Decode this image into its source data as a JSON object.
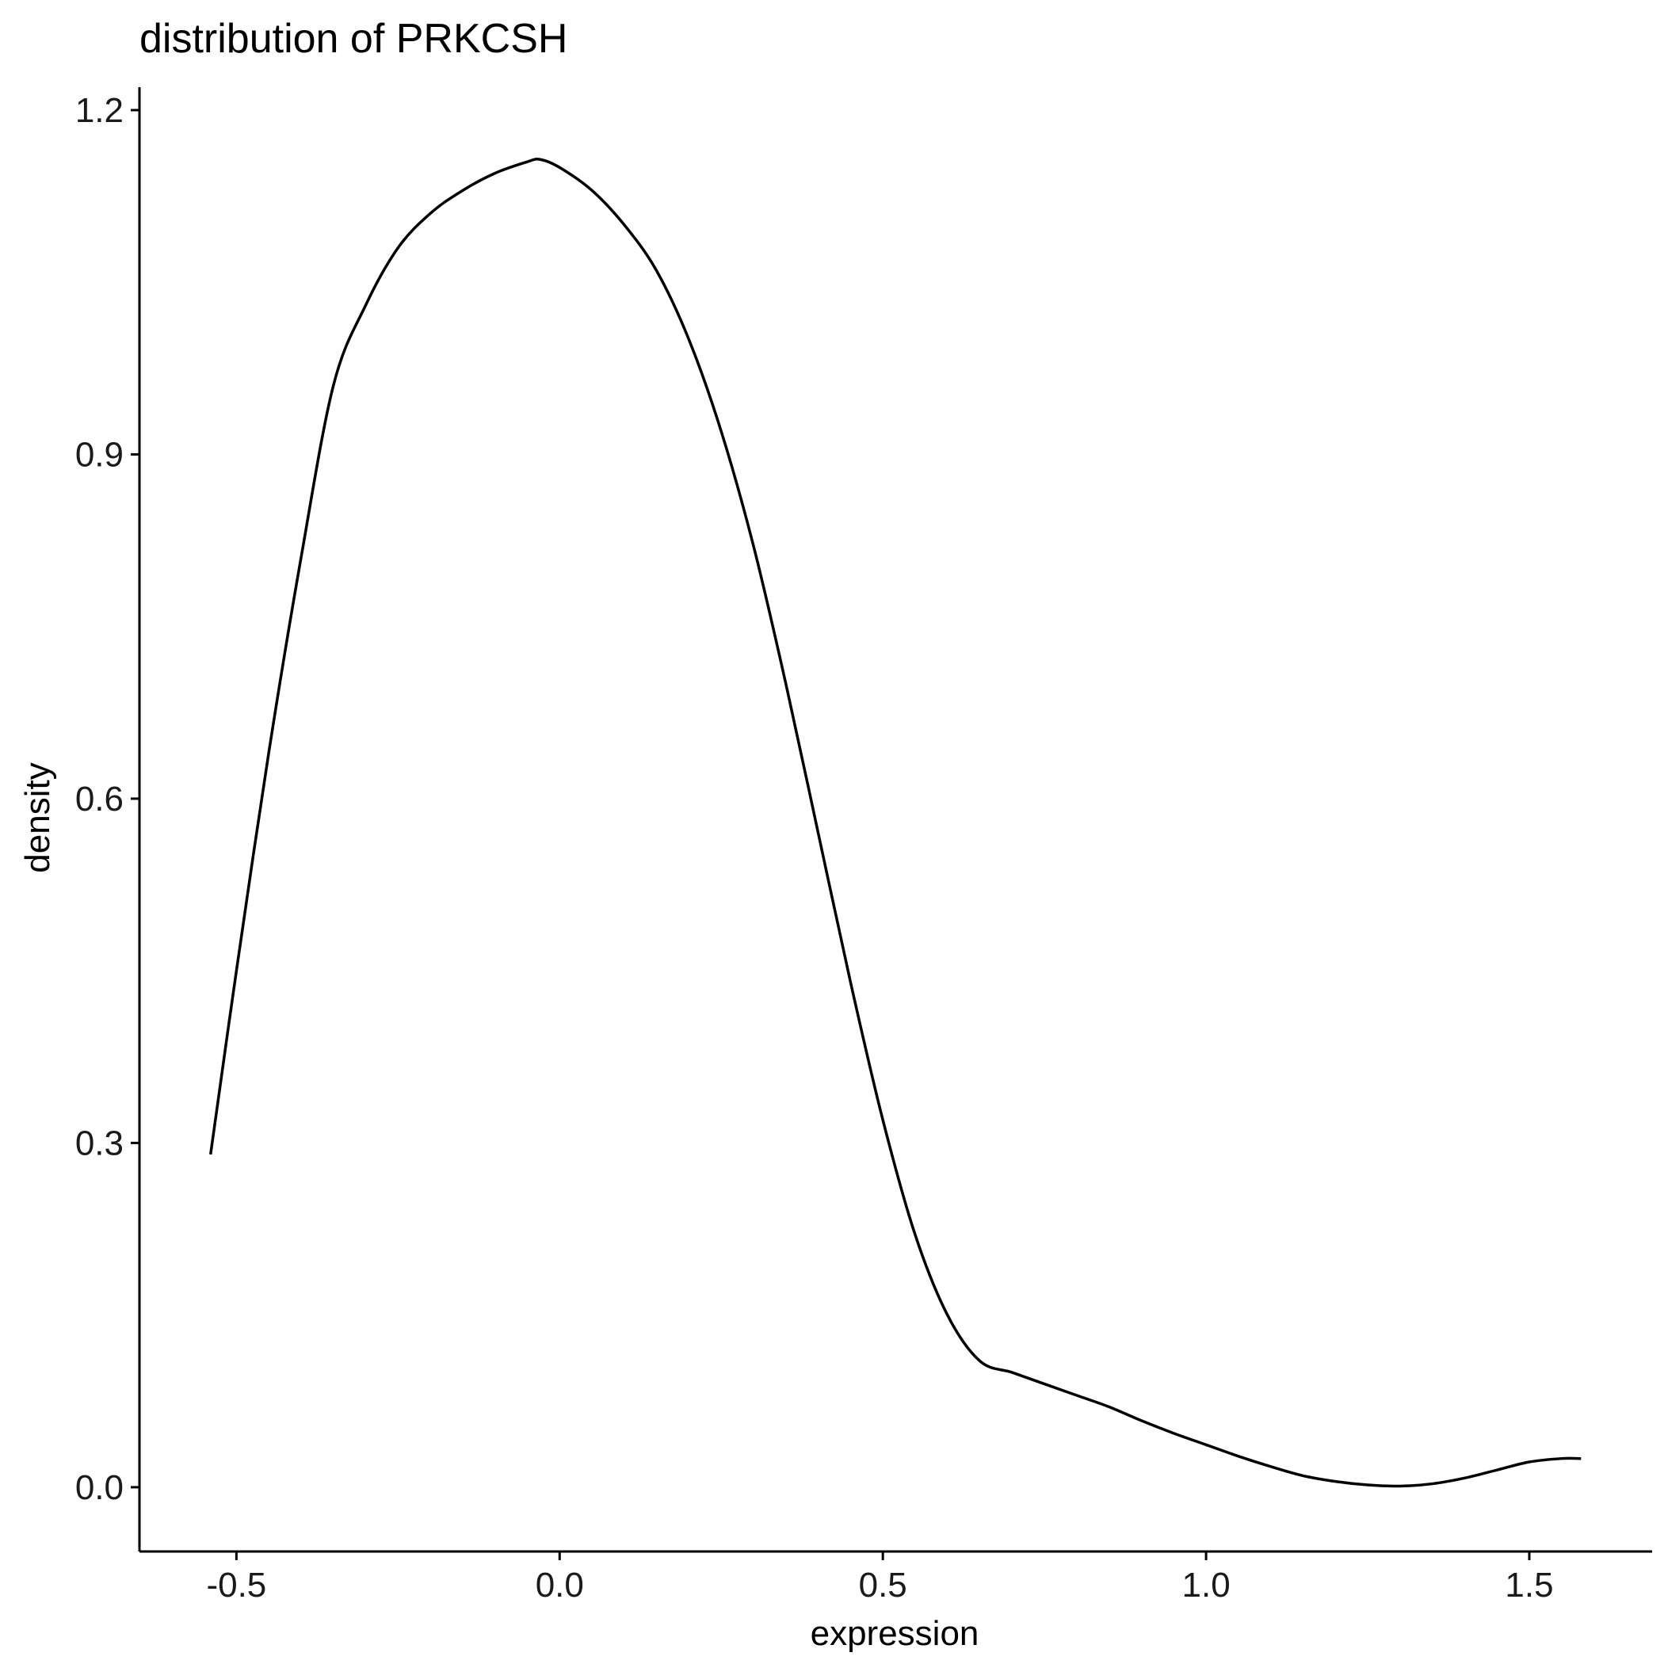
{
  "chart_data": {
    "type": "line",
    "title": "distribution of PRKCSH",
    "xlabel": "expression",
    "ylabel": "density",
    "xlim": [
      -0.65,
      1.69
    ],
    "ylim": [
      -0.056,
      1.22
    ],
    "x_ticks": [
      -0.5,
      0.0,
      0.5,
      1.0,
      1.5
    ],
    "x_tick_labels": [
      "-0.5",
      "0.0",
      "0.5",
      "1.0",
      "1.5"
    ],
    "y_ticks": [
      0.0,
      0.3,
      0.6,
      0.9,
      1.2
    ],
    "y_tick_labels": [
      "0.0",
      "0.3",
      "0.6",
      "0.9",
      "1.2"
    ],
    "grid": false,
    "legend": "none",
    "series": [
      {
        "color": "#000000",
        "x": [
          -0.54,
          -0.5,
          -0.45,
          -0.4,
          -0.35,
          -0.3,
          -0.25,
          -0.2,
          -0.15,
          -0.1,
          -0.05,
          -0.03,
          0.0,
          0.05,
          0.1,
          0.15,
          0.2,
          0.25,
          0.3,
          0.35,
          0.4,
          0.45,
          0.5,
          0.55,
          0.6,
          0.65,
          0.7,
          0.75,
          0.8,
          0.85,
          0.9,
          0.95,
          1.0,
          1.05,
          1.1,
          1.15,
          1.2,
          1.25,
          1.3,
          1.35,
          1.4,
          1.45,
          1.5,
          1.55,
          1.58
        ],
        "y": [
          0.29,
          0.45,
          0.64,
          0.81,
          0.96,
          1.03,
          1.08,
          1.11,
          1.13,
          1.145,
          1.155,
          1.157,
          1.15,
          1.13,
          1.1,
          1.06,
          1.0,
          0.92,
          0.82,
          0.7,
          0.57,
          0.44,
          0.32,
          0.22,
          0.15,
          0.11,
          0.1,
          0.09,
          0.08,
          0.07,
          0.058,
          0.047,
          0.037,
          0.027,
          0.018,
          0.01,
          0.005,
          0.002,
          0.001,
          0.003,
          0.008,
          0.015,
          0.022,
          0.025,
          0.025
        ]
      }
    ]
  }
}
